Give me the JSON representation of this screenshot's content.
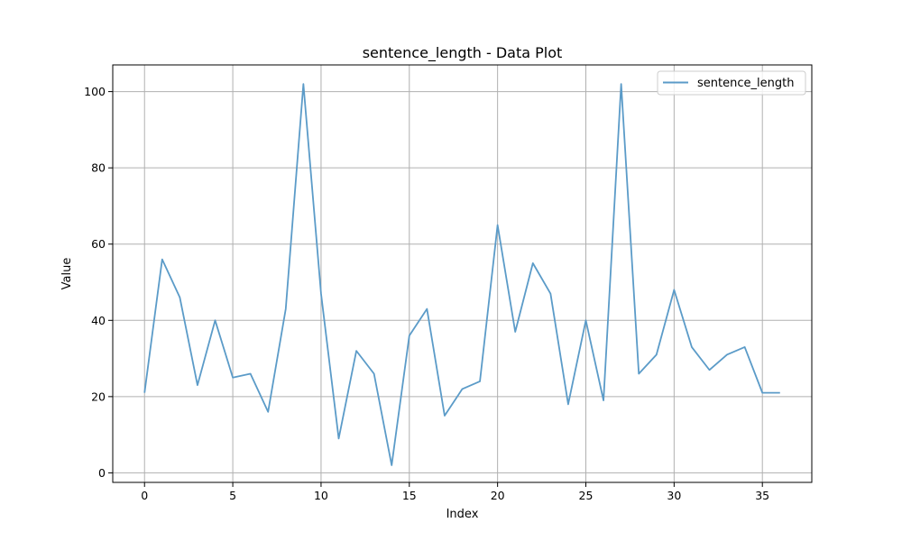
{
  "chart_data": {
    "type": "line",
    "title": "sentence_length - Data Plot",
    "xlabel": "Index",
    "ylabel": "Value",
    "xlim": [
      -1.8,
      37.8
    ],
    "ylim": [
      -2.5,
      107
    ],
    "xticks": [
      0,
      5,
      10,
      15,
      20,
      25,
      30,
      35
    ],
    "yticks": [
      0,
      20,
      40,
      60,
      80,
      100
    ],
    "grid": true,
    "legend_position": "top-right",
    "series": [
      {
        "name": "sentence_length",
        "color": "#5b9bc8",
        "x": [
          0,
          1,
          2,
          3,
          4,
          5,
          6,
          7,
          8,
          9,
          10,
          11,
          12,
          13,
          14,
          15,
          16,
          17,
          18,
          19,
          20,
          21,
          22,
          23,
          24,
          25,
          26,
          27,
          28,
          29,
          30,
          31,
          32,
          33,
          34,
          35,
          36
        ],
        "values": [
          21,
          56,
          46,
          23,
          40,
          25,
          26,
          16,
          43,
          102,
          47,
          9,
          32,
          26,
          2,
          36,
          43,
          15,
          22,
          24,
          65,
          37,
          55,
          47,
          18,
          40,
          19,
          102,
          26,
          31,
          48,
          33,
          27,
          31,
          33,
          21,
          21
        ]
      }
    ]
  }
}
